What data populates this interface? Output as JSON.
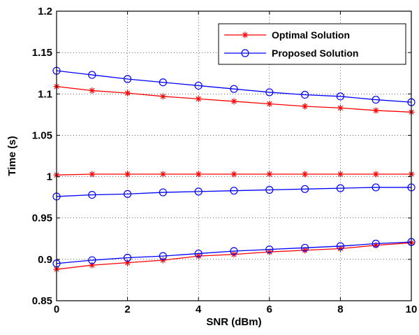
{
  "chart_data": {
    "type": "line",
    "title": "",
    "xlabel": "SNR (dBm)",
    "ylabel": "Time (s)",
    "xlim": [
      0,
      10
    ],
    "ylim": [
      0.85,
      1.2
    ],
    "xticks": [
      0,
      2,
      4,
      6,
      8,
      10
    ],
    "yticks": [
      0.85,
      0.9,
      0.95,
      1,
      1.05,
      1.1,
      1.15,
      1.2
    ],
    "ytick_labels": [
      "0.85",
      "0.9",
      "0.95",
      "1",
      "1.05",
      "1.1",
      "1.15",
      "1.2"
    ],
    "grid": true,
    "legend_position": "top-right",
    "legend": [
      {
        "name": "Optimal Solution",
        "color": "#ff0000",
        "marker": "star"
      },
      {
        "name": "Proposed Solution",
        "color": "#0000ff",
        "marker": "circle"
      }
    ],
    "x": [
      0,
      1,
      2,
      3,
      4,
      5,
      6,
      7,
      8,
      9,
      10
    ],
    "series": [
      {
        "legend_index": 0,
        "color": "#ff0000",
        "marker": "star",
        "values": [
          1.109,
          1.104,
          1.101,
          1.097,
          1.094,
          1.091,
          1.088,
          1.085,
          1.083,
          1.08,
          1.078
        ]
      },
      {
        "legend_index": 1,
        "color": "#0000ff",
        "marker": "circle",
        "values": [
          1.128,
          1.123,
          1.118,
          1.114,
          1.11,
          1.106,
          1.102,
          1.099,
          1.097,
          1.093,
          1.09
        ]
      },
      {
        "legend_index": 0,
        "color": "#ff0000",
        "marker": "star",
        "values": [
          1.002,
          1.003,
          1.003,
          1.003,
          1.003,
          1.003,
          1.003,
          1.003,
          1.003,
          1.003,
          1.003
        ]
      },
      {
        "legend_index": 1,
        "color": "#0000ff",
        "marker": "circle",
        "values": [
          0.976,
          0.978,
          0.979,
          0.981,
          0.982,
          0.983,
          0.984,
          0.985,
          0.986,
          0.987,
          0.987
        ]
      },
      {
        "legend_index": 0,
        "color": "#ff0000",
        "marker": "star",
        "values": [
          0.888,
          0.893,
          0.896,
          0.899,
          0.904,
          0.906,
          0.909,
          0.911,
          0.913,
          0.917,
          0.92
        ]
      },
      {
        "legend_index": 1,
        "color": "#0000ff",
        "marker": "circle",
        "values": [
          0.895,
          0.899,
          0.902,
          0.904,
          0.907,
          0.91,
          0.912,
          0.914,
          0.916,
          0.919,
          0.921
        ]
      }
    ]
  }
}
